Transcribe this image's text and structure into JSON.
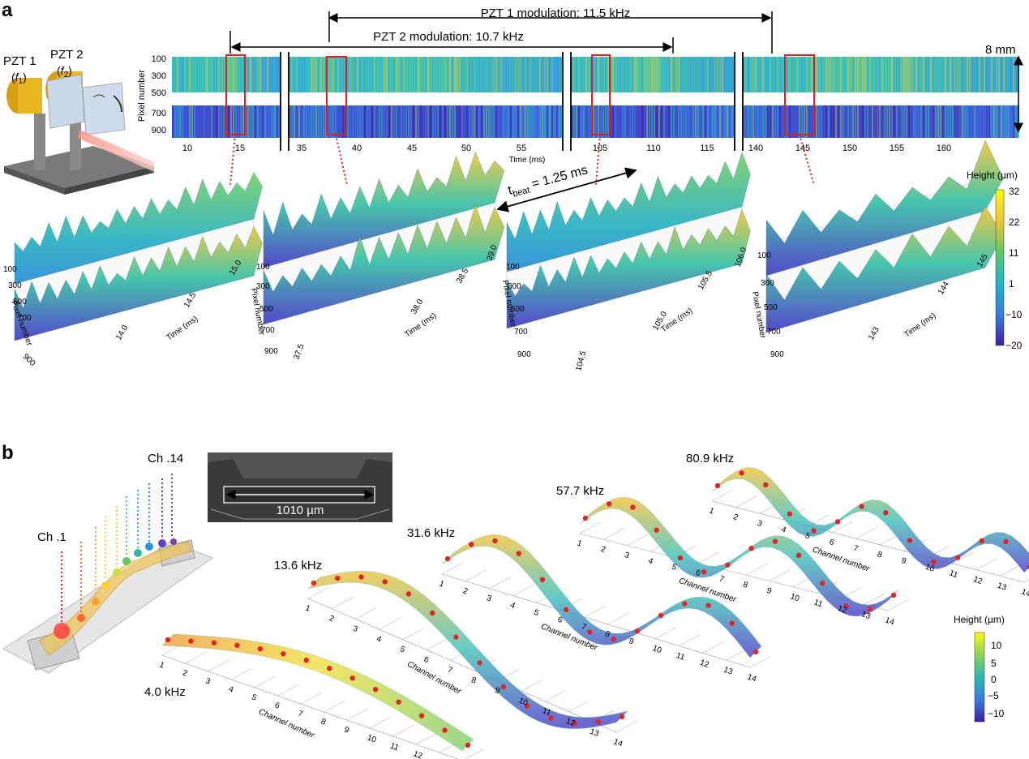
{
  "panel_a": {
    "label": "a",
    "pzt1_label": "PZT 1",
    "pzt1_freq": "f",
    "pzt1_sub": "1",
    "pzt2_label": "PZT 2",
    "pzt2_freq": "f",
    "pzt2_sub": "2",
    "pzt1_modulation": "PZT 1 modulation: 11.5 kHz",
    "pzt2_modulation": "PZT 2 modulation: 10.7 kHz",
    "scale_bar": "8 mm",
    "strip_ylabel": "Pixel number",
    "strip_yticks": [
      "100",
      "300",
      "500",
      "700",
      "900"
    ],
    "strip_xlabel": "Time (ms)",
    "strip_segments": [
      {
        "ticks": [
          "10",
          "15"
        ]
      },
      {
        "ticks": [
          "35",
          "40",
          "45",
          "50",
          "55"
        ]
      },
      {
        "ticks": [
          "105",
          "110",
          "115"
        ]
      },
      {
        "ticks": [
          "140",
          "145",
          "150",
          "155",
          "160"
        ]
      }
    ],
    "beat_label": "t",
    "beat_sub": "beat",
    "beat_value": " = 1.25 ms",
    "colorbar": {
      "title": "Height (µm)",
      "ticks": [
        "32",
        "22",
        "11",
        "1",
        "−10",
        "−20"
      ]
    },
    "surfaces": [
      {
        "ylabel": "Pixel number",
        "yticks": [
          "100",
          "300",
          "500",
          "700",
          "900"
        ],
        "xlabel": "Time (ms)",
        "xticks": [
          "14.0",
          "14.5",
          "15.0"
        ]
      },
      {
        "ylabel": "Pixel number",
        "yticks": [
          "100",
          "300",
          "500",
          "700",
          "900"
        ],
        "xlabel": "Time (ms)",
        "xticks": [
          "37.5",
          "38.0",
          "38.5",
          "39.0"
        ]
      },
      {
        "ylabel": "Pixel number",
        "yticks": [
          "100",
          "300",
          "500",
          "700",
          "900"
        ],
        "xlabel": "Time (ms)",
        "xticks": [
          "104.5",
          "105.0",
          "105.5",
          "106.0"
        ]
      },
      {
        "ylabel": "Pixel number",
        "yticks": [
          "100",
          "300",
          "500",
          "700",
          "900"
        ],
        "xlabel": "Time (ms)",
        "xticks": [
          "143",
          "144",
          "145"
        ]
      }
    ]
  },
  "panel_b": {
    "label": "b",
    "ch1_label": "Ch .1",
    "ch14_label": "Ch .14",
    "sem_scale": "1010 µm",
    "channel_label": "Channel number",
    "channel_ticks": [
      "1",
      "2",
      "3",
      "4",
      "5",
      "6",
      "7",
      "8",
      "9",
      "10",
      "11",
      "12",
      "13",
      "14"
    ],
    "modes": [
      {
        "freq": "4.0 kHz"
      },
      {
        "freq": "13.6 kHz"
      },
      {
        "freq": "31.6 kHz"
      },
      {
        "freq": "57.7 kHz"
      },
      {
        "freq": "80.9 kHz"
      }
    ],
    "colorbar": {
      "title": "Height (µm)",
      "ticks": [
        "10",
        "5",
        "0",
        "−5",
        "−10"
      ]
    }
  },
  "colors": {
    "arrow": "#000000",
    "highlight_box": "#e02020",
    "dot": "#e02626",
    "parula_low": "#3b1fa8",
    "parula_mid": "#1fb5c8",
    "parula_high": "#f9e41f"
  }
}
